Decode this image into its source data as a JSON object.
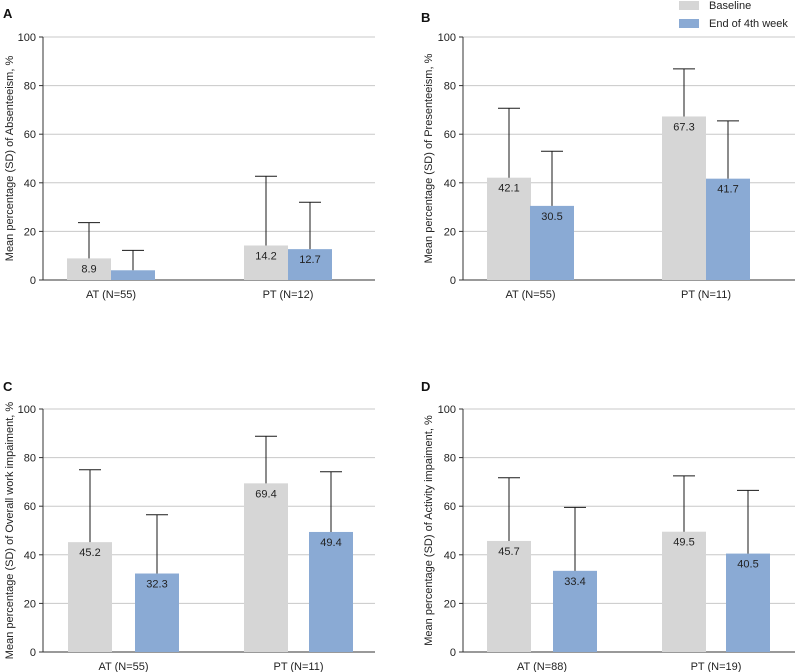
{
  "legend": {
    "items": [
      {
        "label": "Baseline",
        "color": "#d6d6d6"
      },
      {
        "label": "End of 4th week",
        "color": "#8aaad4"
      }
    ]
  },
  "colors": {
    "axis": "#333333",
    "gridline": "#c8c8c8",
    "error_bar": "#1a1a1a",
    "text": "#222222"
  },
  "chart_data": [
    {
      "panel": "A",
      "type": "bar",
      "ylabel": "Mean percentage (SD) of Absenteeism, %",
      "ylim": [
        0,
        100
      ],
      "yticks": [
        0,
        20,
        40,
        60,
        80,
        100
      ],
      "categories": [
        "AT (N=55)",
        "PT (N=12)"
      ],
      "series": [
        {
          "name": "Baseline",
          "values": [
            8.9,
            14.2
          ],
          "sd": [
            14.7,
            28.5
          ],
          "labels": [
            "8.9",
            "14.2"
          ]
        },
        {
          "name": "End of 4th week",
          "values": [
            4.0,
            12.7
          ],
          "sd": [
            8.2,
            19.3
          ],
          "labels": [
            "",
            "12.7"
          ]
        }
      ]
    },
    {
      "panel": "B",
      "type": "bar",
      "ylabel": "Mean percentage (SD) of Presenteeism, %",
      "ylim": [
        0,
        100
      ],
      "yticks": [
        0,
        20,
        40,
        60,
        80,
        100
      ],
      "categories": [
        "AT (N=55)",
        "PT (N=11)"
      ],
      "series": [
        {
          "name": "Baseline",
          "values": [
            42.1,
            67.3
          ],
          "sd": [
            28.6,
            19.6
          ],
          "labels": [
            "42.1",
            "67.3"
          ]
        },
        {
          "name": "End of 4th week",
          "values": [
            30.5,
            41.7
          ],
          "sd": [
            22.5,
            23.8
          ],
          "labels": [
            "30.5",
            "41.7"
          ]
        }
      ]
    },
    {
      "panel": "C",
      "type": "bar",
      "ylabel": "Mean percentage (SD) of Overall work impaiment, %",
      "ylim": [
        0,
        100
      ],
      "yticks": [
        0,
        20,
        40,
        60,
        80,
        100
      ],
      "categories": [
        "AT (N=55)",
        "PT (N=11)"
      ],
      "series": [
        {
          "name": "Baseline",
          "values": [
            45.2,
            69.4
          ],
          "sd": [
            29.8,
            19.4
          ],
          "labels": [
            "45.2",
            "69.4"
          ]
        },
        {
          "name": "End of 4th week",
          "values": [
            32.3,
            49.4
          ],
          "sd": [
            24.2,
            24.8
          ],
          "labels": [
            "32.3",
            "49.4"
          ]
        }
      ]
    },
    {
      "panel": "D",
      "type": "bar",
      "ylabel": "Mean percentage (SD) of Activity impaiment, %",
      "ylim": [
        0,
        100
      ],
      "yticks": [
        0,
        20,
        40,
        60,
        80,
        100
      ],
      "categories": [
        "AT (N=88)",
        "PT (N=19)"
      ],
      "series": [
        {
          "name": "Baseline",
          "values": [
            45.7,
            49.5
          ],
          "sd": [
            26.0,
            23.0
          ],
          "labels": [
            "45.7",
            "49.5"
          ]
        },
        {
          "name": "End of 4th week",
          "values": [
            33.4,
            40.5
          ],
          "sd": [
            26.1,
            26.0
          ],
          "labels": [
            "33.4",
            "40.5"
          ]
        }
      ]
    }
  ]
}
